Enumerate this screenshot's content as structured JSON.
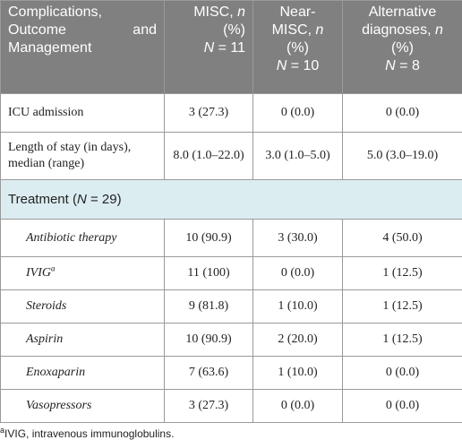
{
  "table": {
    "header": [
      [
        [
          {
            "t": "Complications,"
          }
        ],
        [
          {
            "t": "Outcome and"
          }
        ],
        [
          {
            "t": "Management"
          }
        ]
      ],
      [
        [
          {
            "t": "MISC, "
          },
          {
            "t": "n",
            "i": true
          },
          {
            "t": " (%)"
          }
        ],
        [
          {
            "t": "N",
            "i": true
          },
          {
            "t": " = 11"
          }
        ]
      ],
      [
        [
          {
            "t": "Near-"
          }
        ],
        [
          {
            "t": "MISC, "
          },
          {
            "t": "n",
            "i": true
          }
        ],
        [
          {
            "t": "(%)"
          }
        ],
        [
          {
            "t": "N",
            "i": true
          },
          {
            "t": " = 10"
          }
        ]
      ],
      [
        [
          {
            "t": "Alternative"
          }
        ],
        [
          {
            "t": "diagnoses, "
          },
          {
            "t": "n",
            "i": true
          }
        ],
        [
          {
            "t": "(%)"
          }
        ],
        [
          {
            "t": "N",
            "i": true
          },
          {
            "t": " = 8"
          }
        ]
      ]
    ],
    "rows": [
      [
        "ICU admission",
        "3 (27.3)",
        "0 (0.0)",
        "0 (0.0)"
      ],
      [
        "Length of stay (in days), median (range)",
        "8.0 (1.0–22.0)",
        "3.0 (1.0–5.0)",
        "5.0 (3.0–19.0)"
      ]
    ],
    "section": [
      {
        "t": "Treatment ("
      },
      {
        "t": "N",
        "i": true
      },
      {
        "t": " = 29)"
      }
    ],
    "treatment_rows": [
      [
        [
          {
            "t": "Antibiotic therapy"
          }
        ],
        "10 (90.9)",
        "3 (30.0)",
        "4 (50.0)"
      ],
      [
        [
          {
            "t": "IVIG"
          },
          {
            "t": "a",
            "sup": true
          }
        ],
        "11 (100)",
        "0 (0.0)",
        "1 (12.5)"
      ],
      [
        [
          {
            "t": "Steroids"
          }
        ],
        "9 (81.8)",
        "1 (10.0)",
        "1 (12.5)"
      ],
      [
        [
          {
            "t": "Aspirin"
          }
        ],
        "10 (90.9)",
        "2 (20.0)",
        "1 (12.5)"
      ],
      [
        [
          {
            "t": "Enoxaparin"
          }
        ],
        "7 (63.6)",
        "1 (10.0)",
        "0 (0.0)"
      ],
      [
        [
          {
            "t": "Vasopressors"
          }
        ],
        "3 (27.3)",
        "0 (0.0)",
        "0 (0.0)"
      ]
    ],
    "footnote": [
      {
        "t": "a",
        "sup": true
      },
      {
        "t": "IVIG, intravenous immunoglobulins."
      }
    ]
  }
}
